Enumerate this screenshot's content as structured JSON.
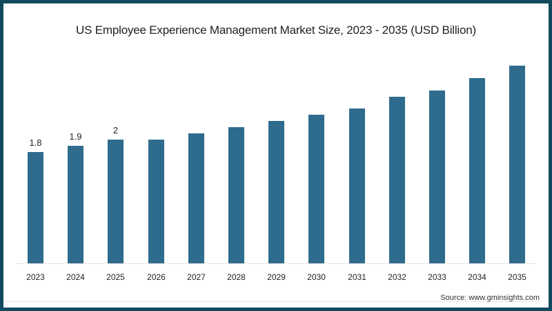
{
  "chart_data": {
    "type": "bar",
    "title": "US Employee Experience Management Market Size, 2023 - 2035 (USD Billion)",
    "xlabel": "",
    "ylabel": "USD Billion",
    "categories": [
      "2023",
      "2024",
      "2025",
      "2026",
      "2027",
      "2028",
      "2029",
      "2030",
      "2031",
      "2032",
      "2033",
      "2034",
      "2035"
    ],
    "values": [
      1.8,
      1.9,
      2.0,
      2.0,
      2.1,
      2.2,
      2.3,
      2.4,
      2.5,
      2.7,
      2.8,
      3.0,
      3.2
    ],
    "data_labels": [
      "1.8",
      "1.9",
      "2",
      "",
      "",
      "",
      "",
      "",
      "",
      "",
      "",
      "",
      ""
    ],
    "ylim": [
      0,
      3.3
    ],
    "grid": false,
    "legend": null,
    "bar_color": "#2e6b8c"
  },
  "source": "Source: www.gminsights.com",
  "frame_color": "#0f4a5f"
}
